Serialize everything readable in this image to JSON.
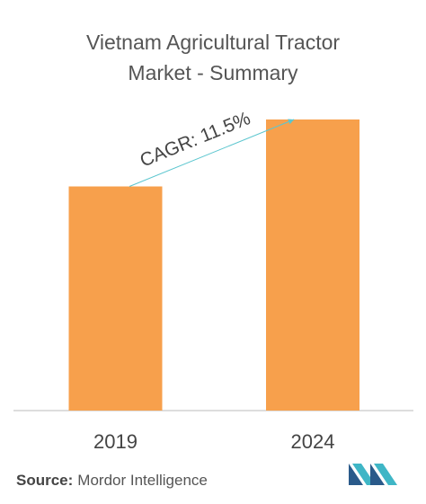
{
  "chart_data": {
    "type": "bar",
    "title": "Vietnam Agricultural Tractor Market - Summary",
    "categories": [
      "2019",
      "2024"
    ],
    "values": [
      77,
      100
    ],
    "color": "#f7a04c",
    "ylim": [
      0,
      100
    ],
    "annotation": "CAGR: 11.5%",
    "annotation_color": "#5cc6cf",
    "source_label": "Source:",
    "source": "Mordor Intelligence"
  }
}
